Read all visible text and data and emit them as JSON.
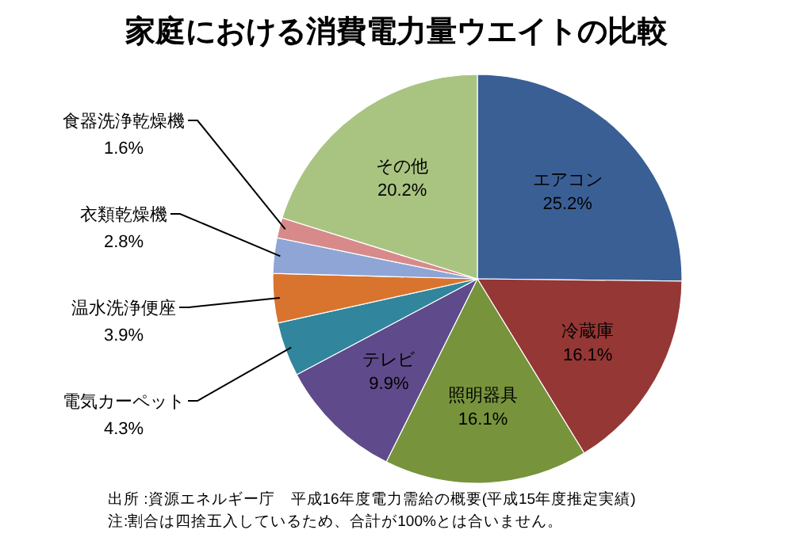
{
  "chart_data": {
    "type": "pie",
    "title": "家庭における消費電力量ウエイトの比較",
    "categories": [
      "エアコン",
      "冷蔵庫",
      "照明器具",
      "テレビ",
      "電気カーペット",
      "温水洗浄便座",
      "衣類乾燥機",
      "食器洗浄乾燥機",
      "その他"
    ],
    "values": [
      25.2,
      16.1,
      16.1,
      9.9,
      4.3,
      3.9,
      2.8,
      1.6,
      20.2
    ],
    "value_labels": [
      "25.2%",
      "16.1%",
      "16.1%",
      "9.9%",
      "4.3%",
      "3.9%",
      "2.8%",
      "1.6%",
      "20.2%"
    ],
    "colors": [
      "#3a5f95",
      "#953735",
      "#77933c",
      "#5f4a8b",
      "#31859c",
      "#d8742e",
      "#8ea5d6",
      "#d88a8a",
      "#a9c481"
    ],
    "annotations": [
      "出所 :資源エネルギー庁　平成16年度電力需給の概要(平成15年度推定実績)",
      "注:割合は四捨五入しているため、合計が100%とは合いません。"
    ]
  }
}
